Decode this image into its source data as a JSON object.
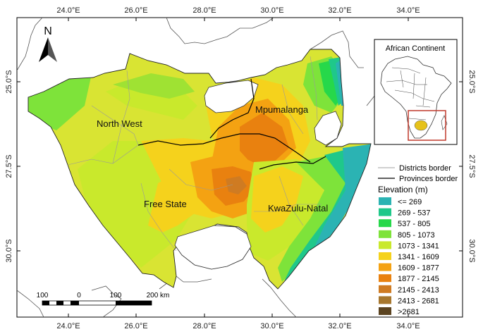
{
  "map": {
    "top_axis_labels": [
      "24.0°E",
      "26.0°E",
      "28.0°E",
      "30.0°E",
      "32.0°E",
      "34.0°E"
    ],
    "bottom_axis_labels": [
      "24.0°E",
      "26.0°E",
      "28.0°E",
      "30.0°E",
      "32.0°E",
      "34.0°E"
    ],
    "left_axis_labels": [
      "25.0°S",
      "27.5°S",
      "30.0°S"
    ],
    "right_axis_labels": [
      "25.0°S",
      "27.5°S",
      "30.0°S"
    ],
    "north_label": "N",
    "provinces": [
      {
        "name": "North West"
      },
      {
        "name": "Mpumalanga"
      },
      {
        "name": "Free State"
      },
      {
        "name": "KwaZulu-Natal"
      }
    ],
    "scale_bar": {
      "labels": [
        "100",
        "0",
        "100",
        "200 km"
      ]
    },
    "inset": {
      "title": "African Continent"
    }
  },
  "legend": {
    "lines": [
      {
        "label": "Districts border",
        "color": "#a0a0a0"
      },
      {
        "label": "Provinces border",
        "color": "#000000"
      }
    ],
    "title": "Elevation (m)",
    "classes": [
      {
        "label": "<= 269",
        "color": "#2bb3b3"
      },
      {
        "label": "269 - 537",
        "color": "#1fc88a"
      },
      {
        "label": "537 - 805",
        "color": "#26d84a"
      },
      {
        "label": "805 - 1073",
        "color": "#7ee33a"
      },
      {
        "label": "1073 - 1341",
        "color": "#c9e92c"
      },
      {
        "label": "1341 - 1609",
        "color": "#f5d21c"
      },
      {
        "label": "1609 - 1877",
        "color": "#f4a212"
      },
      {
        "label": "1877 - 2145",
        "color": "#e9810f"
      },
      {
        "label": "2145 - 2413",
        "color": "#cf7b22"
      },
      {
        "label": "2413 - 2681",
        "color": "#a7772e"
      },
      {
        "label": ">2681",
        "color": "#5b4320"
      }
    ]
  }
}
